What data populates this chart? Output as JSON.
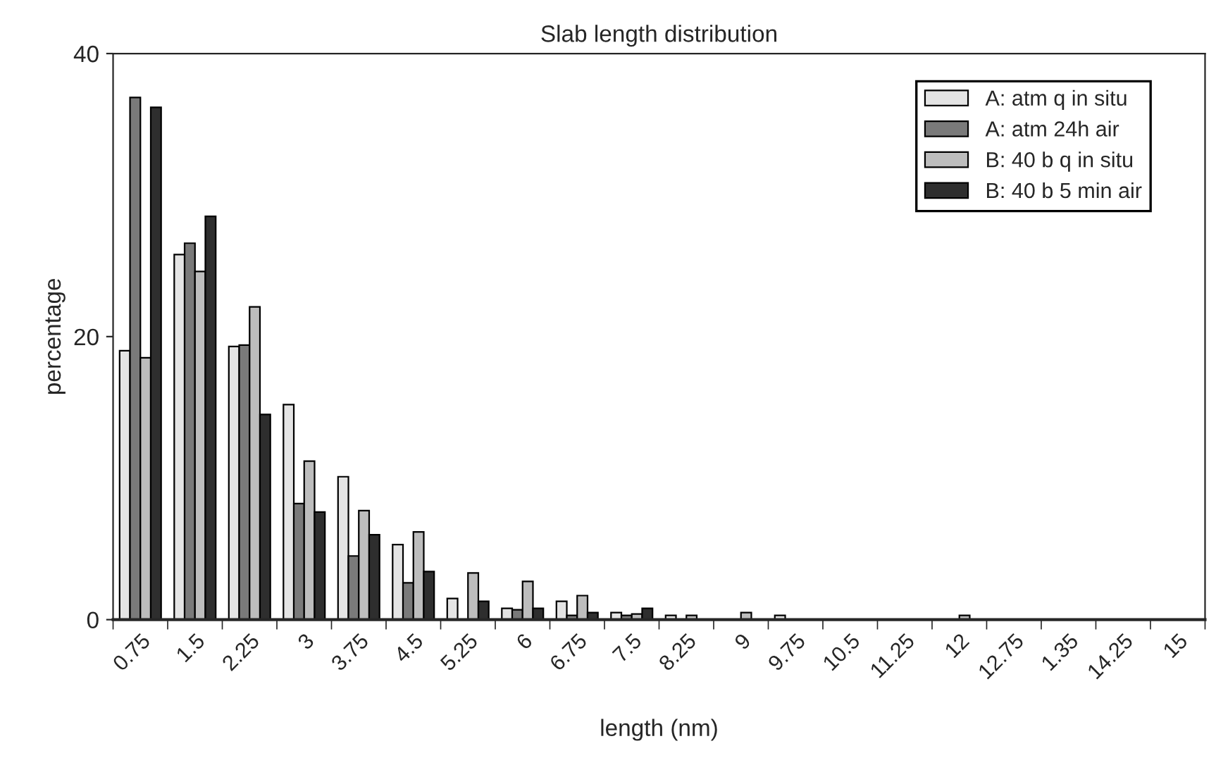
{
  "chart_data": {
    "type": "bar",
    "title": "Slab length distribution",
    "xlabel": "length (nm)",
    "ylabel": "percentage",
    "categories": [
      "0.75",
      "1.5",
      "2.25",
      "3",
      "3.75",
      "4.5",
      "5.25",
      "6",
      "6.75",
      "7.5",
      "8.25",
      "9",
      "9.75",
      "10.5",
      "11.25",
      "12",
      "12.75",
      "1.35",
      "14.25",
      "15"
    ],
    "series": [
      {
        "name": "A: atm q in situ",
        "color": "#e4e4e4",
        "values": [
          19.0,
          25.8,
          19.3,
          15.2,
          10.1,
          5.3,
          1.5,
          0.8,
          1.3,
          0.5,
          0.3,
          null,
          0.3,
          null,
          null,
          null,
          null,
          null,
          null,
          null
        ]
      },
      {
        "name": "A: atm 24h air",
        "color": "#7a7a7a",
        "values": [
          36.9,
          26.6,
          19.4,
          8.2,
          4.5,
          2.6,
          null,
          0.7,
          0.3,
          0.3,
          null,
          null,
          null,
          null,
          null,
          null,
          null,
          null,
          null,
          null
        ]
      },
      {
        "name": "B: 40 b q in situ",
        "color": "#bdbdbd",
        "values": [
          18.5,
          24.6,
          22.1,
          11.2,
          7.7,
          6.2,
          3.3,
          2.7,
          1.7,
          0.4,
          0.3,
          0.5,
          null,
          null,
          null,
          0.3,
          null,
          null,
          null,
          null
        ]
      },
      {
        "name": "B: 40 b 5 min air",
        "color": "#2e2e2e",
        "values": [
          36.2,
          28.5,
          14.5,
          7.6,
          6.0,
          3.4,
          1.3,
          0.8,
          0.5,
          0.8,
          null,
          null,
          null,
          null,
          null,
          null,
          null,
          null,
          null,
          null
        ]
      }
    ],
    "ylim": [
      0,
      40
    ],
    "yticks": [
      0,
      20,
      40
    ],
    "grid": false,
    "legend": "top right"
  }
}
